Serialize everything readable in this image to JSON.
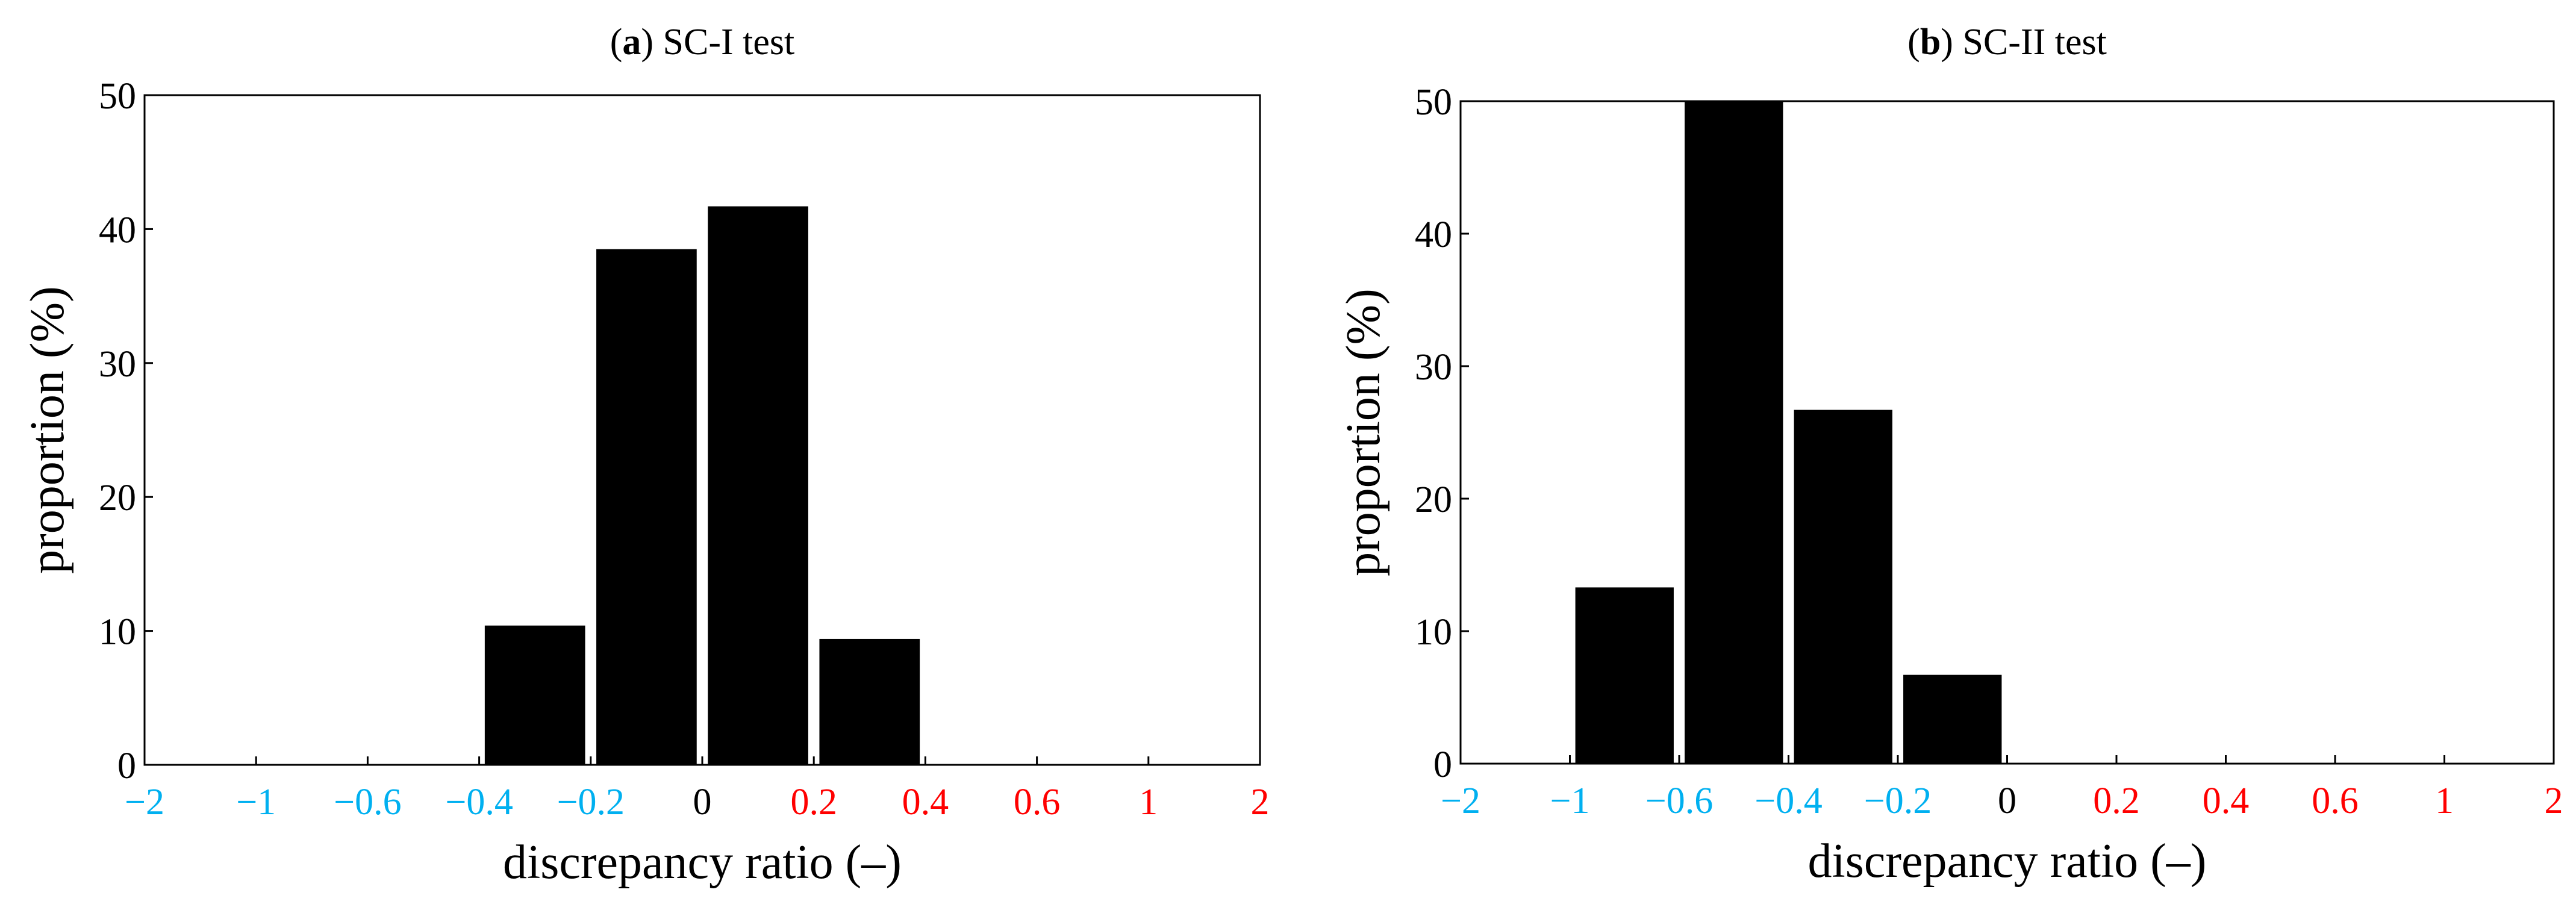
{
  "chart_data": [
    {
      "type": "bar",
      "panel_label": "a",
      "title": "SC-I test",
      "xlabel": "discrepancy ratio (–)",
      "ylabel": "proportion (%)",
      "ylim": [
        0,
        50
      ],
      "yticks": [
        "0",
        "10",
        "20",
        "30",
        "40",
        "50"
      ],
      "xticks": [
        {
          "label": "−2",
          "color": "#00b0f0"
        },
        {
          "label": "−1",
          "color": "#00b0f0"
        },
        {
          "label": "−0.6",
          "color": "#00b0f0"
        },
        {
          "label": "−0.4",
          "color": "#00b0f0"
        },
        {
          "label": "−0.2",
          "color": "#00b0f0"
        },
        {
          "label": "0",
          "color": "#000000"
        },
        {
          "label": "0.2",
          "color": "#ff0000"
        },
        {
          "label": "0.4",
          "color": "#ff0000"
        },
        {
          "label": "0.6",
          "color": "#ff0000"
        },
        {
          "label": "1",
          "color": "#ff0000"
        },
        {
          "label": "2",
          "color": "#ff0000"
        }
      ],
      "bins": [
        "−2 to −1",
        "−1 to −0.6",
        "−0.6 to −0.4",
        "−0.4 to −0.2",
        "−0.2 to 0",
        "0 to 0.2",
        "0.2 to 0.4",
        "0.4 to 0.6",
        "0.6 to 1",
        "1 to 2"
      ],
      "values": [
        0,
        0,
        0,
        10.4,
        38.5,
        41.7,
        9.4,
        0,
        0,
        0
      ],
      "bar_color": "#000000",
      "grid": false
    },
    {
      "type": "bar",
      "panel_label": "b",
      "title": "SC-II test",
      "xlabel": "discrepancy ratio (–)",
      "ylabel": "proportion (%)",
      "ylim": [
        0,
        50
      ],
      "yticks": [
        "0",
        "10",
        "20",
        "30",
        "40",
        "50"
      ],
      "xticks": [
        {
          "label": "−2",
          "color": "#00b0f0"
        },
        {
          "label": "−1",
          "color": "#00b0f0"
        },
        {
          "label": "−0.6",
          "color": "#00b0f0"
        },
        {
          "label": "−0.4",
          "color": "#00b0f0"
        },
        {
          "label": "−0.2",
          "color": "#00b0f0"
        },
        {
          "label": "0",
          "color": "#000000"
        },
        {
          "label": "0.2",
          "color": "#ff0000"
        },
        {
          "label": "0.4",
          "color": "#ff0000"
        },
        {
          "label": "0.6",
          "color": "#ff0000"
        },
        {
          "label": "1",
          "color": "#ff0000"
        },
        {
          "label": "2",
          "color": "#ff0000"
        }
      ],
      "bins": [
        "−2 to −1",
        "−1 to −0.6",
        "−0.6 to −0.4",
        "−0.4 to −0.2",
        "−0.2 to 0",
        "0 to 0.2",
        "0.2 to 0.4",
        "0.4 to 0.6",
        "0.6 to 1",
        "1 to 2"
      ],
      "values": [
        0,
        13.3,
        50,
        26.7,
        6.7,
        0,
        0,
        0,
        0,
        0
      ],
      "bar_color": "#000000",
      "grid": false
    }
  ]
}
